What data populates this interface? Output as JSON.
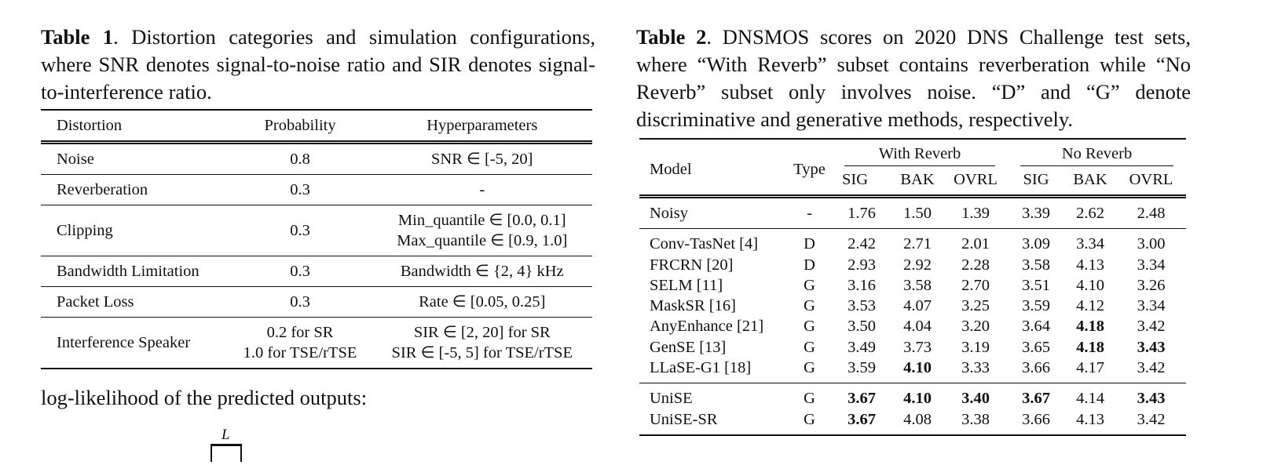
{
  "table1": {
    "label": "Table 1",
    "caption": ". Distortion categories and simulation configurations, where SNR denotes signal-to-noise ratio and SIR denotes signal-to-interference ratio.",
    "header": [
      "Distortion",
      "Probability",
      "Hyperparameters"
    ],
    "rows": [
      [
        "Noise",
        "0.8",
        "SNR ∈ [-5, 20]"
      ],
      [
        "Reverberation",
        "0.3",
        "-"
      ],
      [
        "Clipping",
        "0.3",
        [
          "Min_quantile ∈ [0.0, 0.1]",
          "Max_quantile ∈ [0.9, 1.0]"
        ]
      ],
      [
        "Bandwidth Limitation",
        "0.3",
        "Bandwidth ∈ {2, 4} kHz"
      ],
      [
        "Packet Loss",
        "0.3",
        "Rate ∈ [0.05, 0.25]"
      ],
      [
        "Interference Speaker",
        [
          "0.2 for SR",
          "1.0 for TSE/rTSE"
        ],
        [
          "SIR ∈ [2, 20] for SR",
          "SIR ∈ [-5, 5] for TSE/rTSE"
        ]
      ]
    ]
  },
  "body_text": "log-likelihood of the predicted outputs:",
  "equation_fragment": "L",
  "table2": {
    "label": "Table 2",
    "caption": ". DNSMOS scores on 2020 DNS Challenge test sets, where “With Reverb” subset contains reverberation while “No Reverb” subset only involves noise.  “D” and “G” denote discriminative and generative methods, respectively.",
    "header": {
      "model": "Model",
      "type": "Type",
      "groups": [
        {
          "name": "With Reverb",
          "columns": [
            "SIG",
            "BAK",
            "OVRL"
          ]
        },
        {
          "name": "No Reverb",
          "columns": [
            "SIG",
            "BAK",
            "OVRL"
          ]
        }
      ]
    },
    "row_groups": [
      [
        [
          "Noisy",
          "-",
          "1.76",
          "1.50",
          "1.39",
          "3.39",
          "2.62",
          "2.48"
        ]
      ],
      [
        [
          "Conv-TasNet [4]",
          "D",
          "2.42",
          "2.71",
          "2.01",
          "3.09",
          "3.34",
          "3.00"
        ],
        [
          "FRCRN [20]",
          "D",
          "2.93",
          "2.92",
          "2.28",
          "3.58",
          "4.13",
          "3.34"
        ],
        [
          "SELM [11]",
          "G",
          "3.16",
          "3.58",
          "2.70",
          "3.51",
          "4.10",
          "3.26"
        ],
        [
          "MaskSR [16]",
          "G",
          "3.53",
          "4.07",
          "3.25",
          "3.59",
          "4.12",
          "3.34"
        ],
        [
          "AnyEnhance [21]",
          "G",
          "3.50",
          "4.04",
          "3.20",
          "3.64",
          {
            "text": "4.18",
            "bold": true
          },
          "3.42"
        ],
        [
          "GenSE [13]",
          "G",
          "3.49",
          "3.73",
          "3.19",
          "3.65",
          {
            "text": "4.18",
            "bold": true
          },
          {
            "text": "3.43",
            "bold": true
          }
        ],
        [
          "LLaSE-G1 [18]",
          "G",
          "3.59",
          {
            "text": "4.10",
            "bold": true
          },
          "3.33",
          "3.66",
          "4.17",
          "3.42"
        ]
      ],
      [
        [
          "UniSE",
          "G",
          {
            "text": "3.67",
            "bold": true
          },
          {
            "text": "4.10",
            "bold": true
          },
          {
            "text": "3.40",
            "bold": true
          },
          {
            "text": "3.67",
            "bold": true
          },
          "4.14",
          {
            "text": "3.43",
            "bold": true
          }
        ],
        [
          "UniSE-SR",
          "G",
          {
            "text": "3.67",
            "bold": true
          },
          "4.08",
          "3.38",
          "3.66",
          "4.13",
          "3.42"
        ]
      ]
    ]
  }
}
